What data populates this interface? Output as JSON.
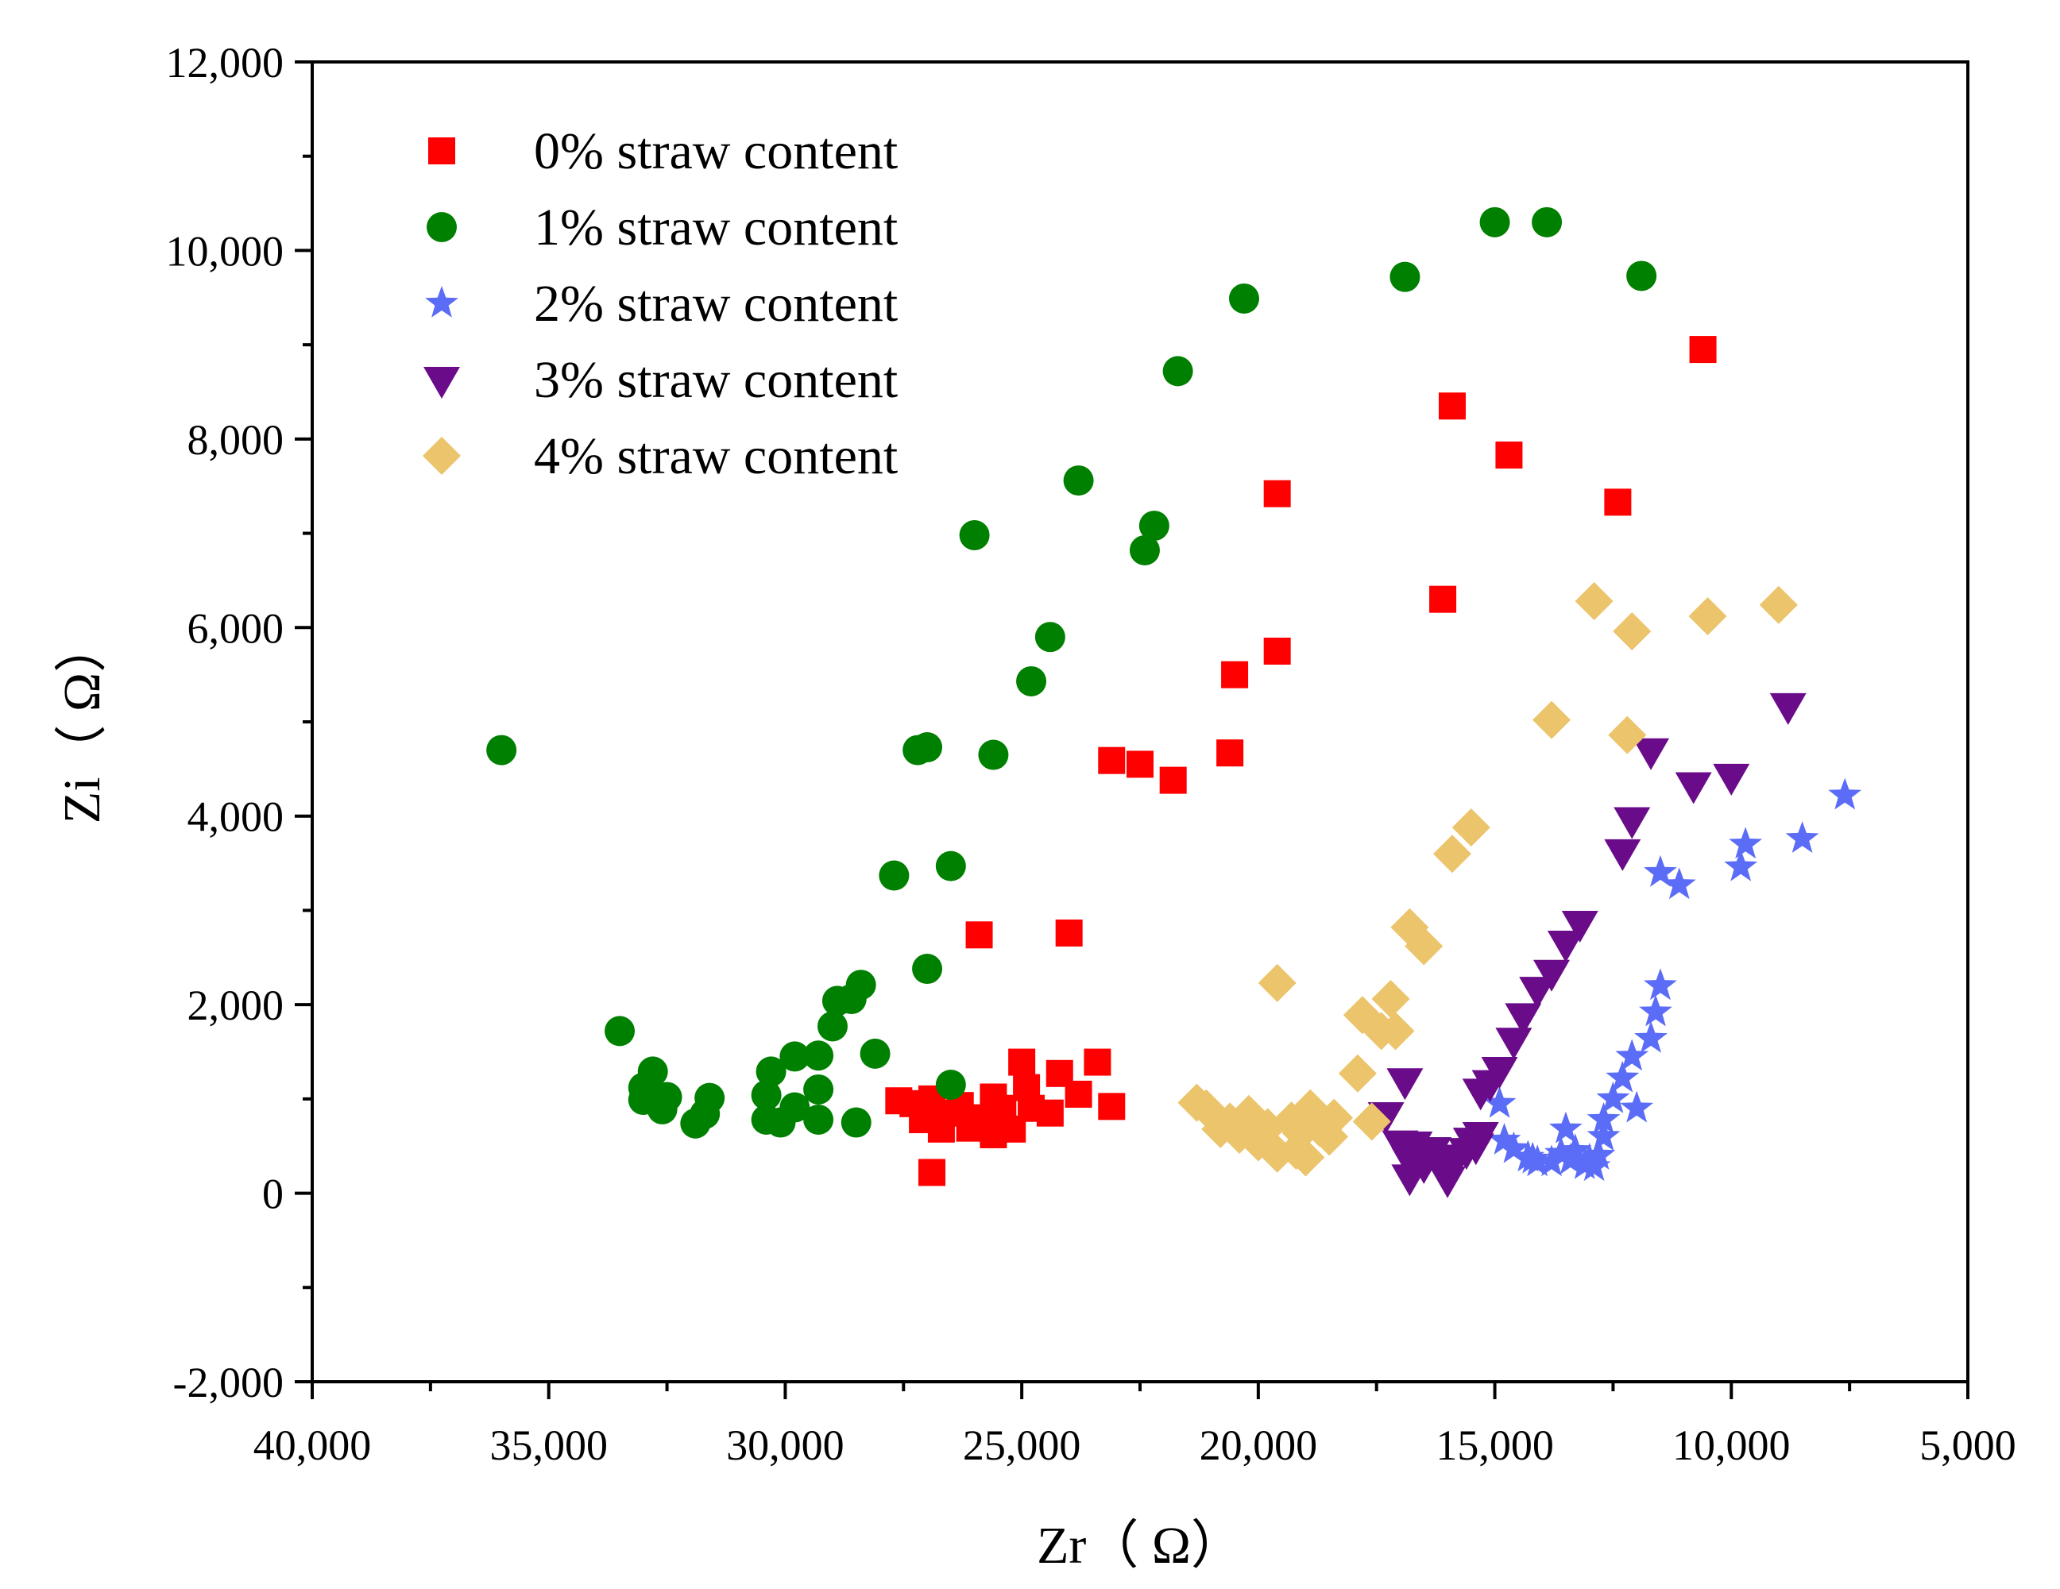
{
  "chart_data": {
    "type": "scatter",
    "xlabel": "Zr（ Ω）",
    "ylabel": "Zi（ Ω）",
    "xlim": [
      40000,
      5000
    ],
    "ylim": [
      -2000,
      12000
    ],
    "x_ticks": [
      40000,
      35000,
      30000,
      25000,
      20000,
      15000,
      10000,
      5000
    ],
    "x_tick_labels": [
      "40,000",
      "35,000",
      "30,000",
      "25,000",
      "20,000",
      "15,000",
      "10,000",
      "5,000"
    ],
    "y_ticks": [
      -2000,
      0,
      2000,
      4000,
      6000,
      8000,
      10000,
      12000
    ],
    "y_tick_labels": [
      "-2,000",
      "0",
      "2,000",
      "4,000",
      "6,000",
      "8,000",
      "10,000",
      "12,000"
    ],
    "grid": false,
    "legend_position": "top-left",
    "series": [
      {
        "name": "0% straw content",
        "marker": "square",
        "color": "#ff0000",
        "points": [
          [
            10600,
            8950
          ],
          [
            15900,
            8350
          ],
          [
            14700,
            7830
          ],
          [
            12400,
            7330
          ],
          [
            19600,
            7420
          ],
          [
            16100,
            6300
          ],
          [
            19600,
            5750
          ],
          [
            20500,
            5500
          ],
          [
            20600,
            4670
          ],
          [
            23100,
            4590
          ],
          [
            22500,
            4550
          ],
          [
            21800,
            4380
          ],
          [
            25900,
            2740
          ],
          [
            24000,
            2760
          ],
          [
            23400,
            1390
          ],
          [
            24200,
            1270
          ],
          [
            25000,
            1390
          ],
          [
            26900,
            1000
          ],
          [
            27600,
            980
          ],
          [
            27000,
            890
          ],
          [
            26500,
            850
          ],
          [
            26100,
            690
          ],
          [
            26700,
            680
          ],
          [
            25200,
            680
          ],
          [
            25400,
            900
          ],
          [
            25600,
            1020
          ],
          [
            24800,
            900
          ],
          [
            24400,
            850
          ],
          [
            24900,
            1120
          ],
          [
            25800,
            800
          ],
          [
            27300,
            950
          ],
          [
            27100,
            780
          ],
          [
            26300,
            930
          ],
          [
            23800,
            1050
          ],
          [
            23100,
            920
          ],
          [
            25600,
            620
          ],
          [
            26900,
            220
          ]
        ]
      },
      {
        "name": "1% straw content",
        "marker": "circle",
        "color": "#008000",
        "points": [
          [
            15000,
            10300
          ],
          [
            13900,
            10300
          ],
          [
            16900,
            9720
          ],
          [
            11900,
            9730
          ],
          [
            20300,
            9490
          ],
          [
            21700,
            8720
          ],
          [
            23800,
            7560
          ],
          [
            22200,
            7080
          ],
          [
            22400,
            6820
          ],
          [
            26000,
            6980
          ],
          [
            24400,
            5900
          ],
          [
            24800,
            5430
          ],
          [
            25600,
            4650
          ],
          [
            27200,
            4700
          ],
          [
            27000,
            4730
          ],
          [
            36000,
            4700
          ],
          [
            27700,
            3370
          ],
          [
            26500,
            3470
          ],
          [
            27000,
            2380
          ],
          [
            33500,
            1720
          ],
          [
            28400,
            2210
          ],
          [
            28600,
            2060
          ],
          [
            28900,
            2040
          ],
          [
            29000,
            1770
          ],
          [
            28100,
            1480
          ],
          [
            29300,
            1460
          ],
          [
            29800,
            1450
          ],
          [
            30300,
            1290
          ],
          [
            32800,
            1290
          ],
          [
            33000,
            1120
          ],
          [
            32500,
            1020
          ],
          [
            31600,
            1010
          ],
          [
            33000,
            990
          ],
          [
            30400,
            1040
          ],
          [
            29300,
            1100
          ],
          [
            29800,
            910
          ],
          [
            32600,
            890
          ],
          [
            31700,
            840
          ],
          [
            31900,
            740
          ],
          [
            30400,
            780
          ],
          [
            30100,
            750
          ],
          [
            29300,
            780
          ],
          [
            28500,
            750
          ],
          [
            26500,
            1150
          ]
        ]
      },
      {
        "name": "2% straw content",
        "marker": "star",
        "color": "#5b6cf7",
        "points": [
          [
            7600,
            4220
          ],
          [
            8500,
            3760
          ],
          [
            9700,
            3700
          ],
          [
            9800,
            3460
          ],
          [
            11500,
            3400
          ],
          [
            11100,
            3270
          ],
          [
            11500,
            2200
          ],
          [
            11600,
            1920
          ],
          [
            11700,
            1640
          ],
          [
            12100,
            1450
          ],
          [
            12300,
            1220
          ],
          [
            12000,
            900
          ],
          [
            12500,
            1000
          ],
          [
            12700,
            780
          ],
          [
            14900,
            950
          ],
          [
            14800,
            560
          ],
          [
            14600,
            470
          ],
          [
            14300,
            380
          ],
          [
            14100,
            330
          ],
          [
            13800,
            330
          ],
          [
            13500,
            680
          ],
          [
            13300,
            450
          ],
          [
            13100,
            300
          ],
          [
            12900,
            280
          ],
          [
            12800,
            400
          ],
          [
            12700,
            600
          ],
          [
            13400,
            350
          ],
          [
            13600,
            420
          ],
          [
            14200,
            360
          ],
          [
            13000,
            350
          ]
        ]
      },
      {
        "name": "3% straw content",
        "marker": "triangle-down",
        "color": "#6a0c8a",
        "points": [
          [
            8800,
            5170
          ],
          [
            10000,
            4420
          ],
          [
            10800,
            4330
          ],
          [
            11700,
            4690
          ],
          [
            12100,
            3960
          ],
          [
            12300,
            3620
          ],
          [
            13200,
            2860
          ],
          [
            13500,
            2650
          ],
          [
            13800,
            2340
          ],
          [
            14100,
            2160
          ],
          [
            14400,
            1880
          ],
          [
            14600,
            1620
          ],
          [
            14900,
            1310
          ],
          [
            15100,
            1170
          ],
          [
            15300,
            1080
          ],
          [
            16900,
            1190
          ],
          [
            17300,
            830
          ],
          [
            17000,
            530
          ],
          [
            16800,
            350
          ],
          [
            16800,
            170
          ],
          [
            16500,
            300
          ],
          [
            16300,
            460
          ],
          [
            16100,
            300
          ],
          [
            16000,
            150
          ],
          [
            15800,
            380
          ],
          [
            15600,
            450
          ],
          [
            15400,
            500
          ],
          [
            15300,
            620
          ],
          [
            15500,
            560
          ],
          [
            16700,
            520
          ]
        ]
      },
      {
        "name": "4% straw content",
        "marker": "diamond",
        "color": "#ebc46b",
        "points": [
          [
            9000,
            6240
          ],
          [
            10500,
            6120
          ],
          [
            12100,
            5960
          ],
          [
            12900,
            6280
          ],
          [
            13800,
            5020
          ],
          [
            12200,
            4860
          ],
          [
            15500,
            3880
          ],
          [
            15900,
            3600
          ],
          [
            16500,
            2620
          ],
          [
            16800,
            2820
          ],
          [
            17200,
            2060
          ],
          [
            19600,
            2230
          ],
          [
            17800,
            1890
          ],
          [
            17400,
            1720
          ],
          [
            17100,
            1720
          ],
          [
            17900,
            1270
          ],
          [
            17600,
            760
          ],
          [
            18400,
            800
          ],
          [
            18900,
            900
          ],
          [
            18700,
            690
          ],
          [
            19100,
            640
          ],
          [
            19300,
            770
          ],
          [
            19800,
            700
          ],
          [
            20200,
            840
          ],
          [
            20600,
            760
          ],
          [
            21100,
            900
          ],
          [
            21300,
            960
          ],
          [
            20800,
            680
          ],
          [
            20400,
            620
          ],
          [
            20000,
            540
          ],
          [
            19600,
            420
          ],
          [
            19200,
            450
          ],
          [
            19000,
            380
          ],
          [
            18500,
            600
          ]
        ]
      }
    ]
  }
}
